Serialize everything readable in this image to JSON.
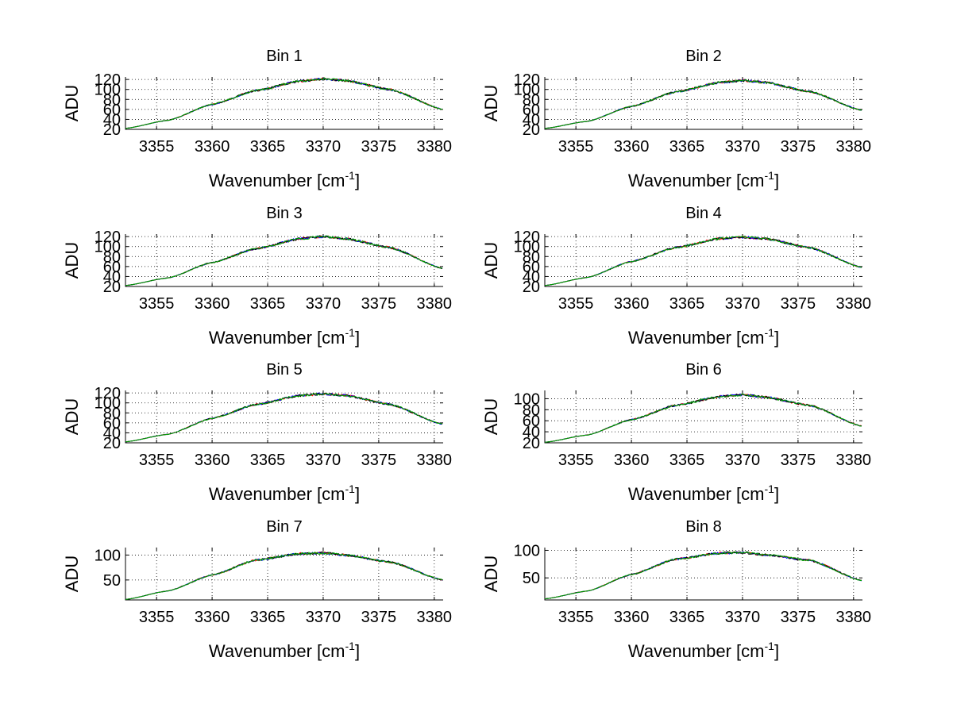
{
  "chart_data": [
    {
      "type": "line",
      "title": "Bin 1",
      "xlabel": "Wavenumber [cm",
      "xlabel_sup": "-1",
      "xlabel_end": "]",
      "ylabel": "ADU",
      "xlim": [
        3352.2,
        3380.8
      ],
      "ylim": [
        20,
        125
      ],
      "xticks": [
        3355,
        3360,
        3365,
        3370,
        3375,
        3380
      ],
      "yticks": [
        20,
        40,
        60,
        80,
        100,
        120
      ],
      "ytick_labels": [
        "20",
        "40",
        "60",
        "80",
        "100",
        "120"
      ],
      "grid": true,
      "colors": [
        "#ff0000",
        "#0000ff",
        "#000000",
        "#00aa00"
      ],
      "series": [
        {
          "x": [
            3352.2,
            3356,
            3360,
            3364,
            3368,
            3370,
            3372,
            3376,
            3380.8
          ],
          "values": [
            22,
            38,
            70,
            98,
            117,
            121,
            118,
            100,
            60
          ]
        }
      ]
    },
    {
      "type": "line",
      "title": "Bin 2",
      "xlabel": "Wavenumber [cm",
      "xlabel_sup": "-1",
      "xlabel_end": "]",
      "ylabel": "ADU",
      "xlim": [
        3352.2,
        3380.8
      ],
      "ylim": [
        20,
        125
      ],
      "xticks": [
        3355,
        3360,
        3365,
        3370,
        3375,
        3380
      ],
      "yticks": [
        20,
        40,
        60,
        80,
        100,
        120
      ],
      "ytick_labels": [
        "20",
        "40",
        "60",
        "80",
        "100",
        "120"
      ],
      "grid": true,
      "colors": [
        "#ff0000",
        "#0000ff",
        "#000000",
        "#00aa00"
      ],
      "series": [
        {
          "x": [
            3352.2,
            3356,
            3360,
            3364,
            3368,
            3370,
            3372,
            3376,
            3380.8
          ],
          "values": [
            22,
            36,
            66,
            95,
            114,
            118,
            114,
            96,
            58
          ]
        }
      ]
    },
    {
      "type": "line",
      "title": "Bin 3",
      "xlabel": "Wavenumber [cm",
      "xlabel_sup": "-1",
      "xlabel_end": "]",
      "ylabel": "ADU",
      "xlim": [
        3352.2,
        3380.8
      ],
      "ylim": [
        20,
        125
      ],
      "xticks": [
        3355,
        3360,
        3365,
        3370,
        3375,
        3380
      ],
      "yticks": [
        20,
        40,
        60,
        80,
        100,
        120
      ],
      "ytick_labels": [
        "20",
        "40",
        "60",
        "80",
        "100",
        "120"
      ],
      "grid": true,
      "colors": [
        "#ff0000",
        "#0000ff",
        "#000000",
        "#00aa00"
      ],
      "series": [
        {
          "x": [
            3352.2,
            3356,
            3360,
            3364,
            3368,
            3370,
            3372,
            3376,
            3380.8
          ],
          "values": [
            22,
            37,
            68,
            96,
            116,
            120,
            116,
            98,
            56
          ]
        }
      ]
    },
    {
      "type": "line",
      "title": "Bin 4",
      "xlabel": "Wavenumber [cm",
      "xlabel_sup": "-1",
      "xlabel_end": "]",
      "ylabel": "ADU",
      "xlim": [
        3352.2,
        3380.8
      ],
      "ylim": [
        20,
        125
      ],
      "xticks": [
        3355,
        3360,
        3365,
        3370,
        3375,
        3380
      ],
      "yticks": [
        20,
        40,
        60,
        80,
        100,
        120
      ],
      "ytick_labels": [
        "20",
        "40",
        "60",
        "80",
        "100",
        "120"
      ],
      "grid": true,
      "colors": [
        "#ff0000",
        "#0000ff",
        "#000000",
        "#00aa00"
      ],
      "series": [
        {
          "x": [
            3352.2,
            3356,
            3360,
            3364,
            3368,
            3370,
            3372,
            3376,
            3380.8
          ],
          "values": [
            22,
            38,
            70,
            98,
            116,
            119,
            116,
            98,
            58
          ]
        }
      ]
    },
    {
      "type": "line",
      "title": "Bin 5",
      "xlabel": "Wavenumber [cm",
      "xlabel_sup": "-1",
      "xlabel_end": "]",
      "ylabel": "ADU",
      "xlim": [
        3352.2,
        3380.8
      ],
      "ylim": [
        20,
        125
      ],
      "xticks": [
        3355,
        3360,
        3365,
        3370,
        3375,
        3380
      ],
      "yticks": [
        20,
        40,
        60,
        80,
        100,
        120
      ],
      "ytick_labels": [
        "20",
        "40",
        "60",
        "80",
        "100",
        "120"
      ],
      "grid": true,
      "colors": [
        "#ff0000",
        "#0000ff",
        "#000000",
        "#00aa00"
      ],
      "series": [
        {
          "x": [
            3352.2,
            3356,
            3360,
            3364,
            3368,
            3370,
            3372,
            3376,
            3380.8
          ],
          "values": [
            22,
            37,
            69,
            97,
            115,
            118,
            115,
            97,
            57
          ]
        }
      ]
    },
    {
      "type": "line",
      "title": "Bin 6",
      "xlabel": "Wavenumber [cm",
      "xlabel_sup": "-1",
      "xlabel_end": "]",
      "ylabel": "ADU",
      "xlim": [
        3352.2,
        3380.8
      ],
      "ylim": [
        20,
        115
      ],
      "xticks": [
        3355,
        3360,
        3365,
        3370,
        3375,
        3380
      ],
      "yticks": [
        20,
        40,
        60,
        80,
        100
      ],
      "ytick_labels": [
        "20",
        "40",
        "60",
        "80",
        "100"
      ],
      "grid": true,
      "colors": [
        "#ff0000",
        "#0000ff",
        "#000000",
        "#00aa00"
      ],
      "series": [
        {
          "x": [
            3352.2,
            3356,
            3360,
            3364,
            3368,
            3370,
            3372,
            3376,
            3380.8
          ],
          "values": [
            21,
            34,
            62,
            88,
            104,
            107,
            103,
            88,
            50
          ]
        }
      ]
    },
    {
      "type": "line",
      "title": "Bin 7",
      "xlabel": "Wavenumber [cm",
      "xlabel_sup": "-1",
      "xlabel_end": "]",
      "ylabel": "ADU",
      "xlim": [
        3352.2,
        3380.8
      ],
      "ylim": [
        10,
        115
      ],
      "xticks": [
        3355,
        3360,
        3365,
        3370,
        3375,
        3380
      ],
      "yticks": [
        50,
        100
      ],
      "ytick_labels": [
        "50",
        "100"
      ],
      "grid": true,
      "colors": [
        "#ff0000",
        "#0000ff",
        "#000000",
        "#00aa00"
      ],
      "series": [
        {
          "x": [
            3352.2,
            3356,
            3360,
            3364,
            3368,
            3370,
            3372,
            3376,
            3380.8
          ],
          "values": [
            11,
            28,
            60,
            90,
            103,
            104,
            100,
            86,
            50
          ]
        }
      ]
    },
    {
      "type": "line",
      "title": "Bin 8",
      "xlabel": "Wavenumber [cm",
      "xlabel_sup": "-1",
      "xlabel_end": "]",
      "ylabel": "ADU",
      "xlim": [
        3352.2,
        3380.8
      ],
      "ylim": [
        10,
        105
      ],
      "xticks": [
        3355,
        3360,
        3365,
        3370,
        3375,
        3380
      ],
      "yticks": [
        50,
        100
      ],
      "ytick_labels": [
        "50",
        "100"
      ],
      "grid": true,
      "colors": [
        "#ff0000",
        "#0000ff",
        "#000000",
        "#00aa00"
      ],
      "series": [
        {
          "x": [
            3352.2,
            3356,
            3360,
            3364,
            3368,
            3370,
            3372,
            3376,
            3380.8
          ],
          "values": [
            12,
            26,
            56,
            84,
            95,
            96,
            92,
            82,
            45
          ]
        }
      ]
    }
  ]
}
